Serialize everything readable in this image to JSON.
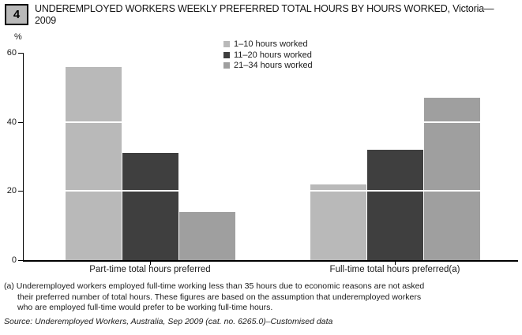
{
  "header": {
    "figure_number": "4",
    "title_line1": "UNDEREMPLOYED WORKERS WEEKLY PREFERRED TOTAL HOURS BY HOURS WORKED, Victoria—",
    "title_line2": "2009"
  },
  "chart_data": {
    "type": "bar",
    "title": "Underemployed workers weekly preferred total hours by hours worked, Victoria — 2009",
    "ylabel": "%",
    "ylim": [
      0,
      60
    ],
    "yticks": [
      0,
      20,
      40,
      60
    ],
    "grid": "white overlay lines at interior ticks",
    "legend_position": "top-center",
    "categories": [
      "Part-time total hours preferred",
      "Full-time total hours preferred(a)"
    ],
    "series": [
      {
        "name": "1–10 hours worked",
        "color": "#b9b9b9",
        "values": [
          56,
          22
        ]
      },
      {
        "name": "11–20 hours worked",
        "color": "#3f3f3f",
        "values": [
          31,
          32
        ]
      },
      {
        "name": "21–34 hours worked",
        "color": "#9f9f9f",
        "values": [
          14,
          47
        ]
      }
    ]
  },
  "footnotes": {
    "lines": [
      "(a) Underemployed workers employed full-time working less than 35 hours due to economic reasons are not asked",
      "their preferred number of total hours. These figures are based on the assumption that underemployed workers",
      "who are employed full-time would prefer to be working full-time hours."
    ]
  },
  "source": "Source: Underemployed Workers, Australia, Sep 2009 (cat. no. 6265.0)–Customised data"
}
